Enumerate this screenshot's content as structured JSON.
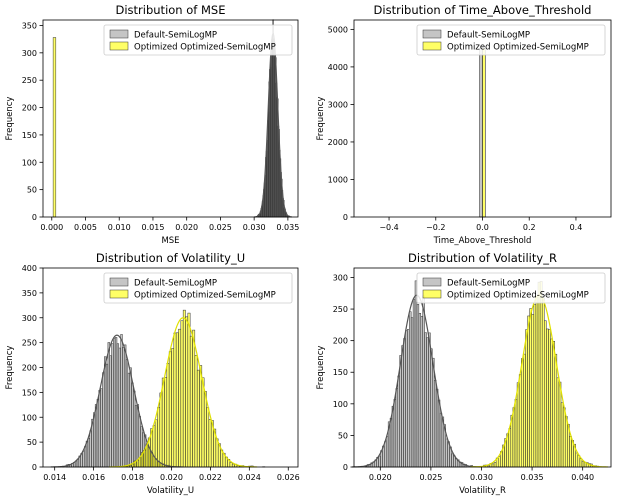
{
  "chart_data": [
    {
      "type": "bar",
      "title": "Distribution of MSE",
      "xlabel": "MSE",
      "ylabel": "Frequency",
      "xlim": [
        -0.0013,
        0.0365
      ],
      "ylim": [
        0,
        360
      ],
      "xticks": [
        0.0,
        0.005,
        0.01,
        0.015,
        0.02,
        0.025,
        0.03,
        0.035
      ],
      "xtick_labels": [
        "0.000",
        "0.005",
        "0.010",
        "0.015",
        "0.020",
        "0.025",
        "0.030",
        "0.035"
      ],
      "yticks": [
        0,
        50,
        100,
        150,
        200,
        250,
        300,
        350
      ],
      "ytick_labels": [
        "0",
        "50",
        "100",
        "150",
        "200",
        "250",
        "300",
        "350"
      ],
      "legend_position": "top-right",
      "series": [
        {
          "name": "Default-SemiLogMP",
          "color": "#9e9e9e",
          "kde": true,
          "hist": {
            "mean": 0.0328,
            "sd": 0.0007,
            "peak": 335,
            "range": [
              0.0305,
              0.0352
            ],
            "bins": 48
          }
        },
        {
          "name": "Optimized Optimized-SemiLogMP",
          "color": "#ffff00",
          "kde": false,
          "hist": {
            "mean": 0.0004,
            "sd": 5e-05,
            "peak": 328,
            "range": [
              0.0002,
              0.0006
            ],
            "bins": 1
          }
        }
      ]
    },
    {
      "type": "bar",
      "title": "Distribution of Time_Above_Threshold",
      "xlabel": "Time_Above_Threshold",
      "ylabel": "Frequency",
      "xlim": [
        -0.55,
        0.55
      ],
      "ylim": [
        0,
        5250
      ],
      "xticks": [
        -0.4,
        -0.2,
        0.0,
        0.2,
        0.4
      ],
      "xtick_labels": [
        "−0.4",
        "−0.2",
        "0.0",
        "0.2",
        "0.4"
      ],
      "yticks": [
        0,
        1000,
        2000,
        3000,
        4000,
        5000
      ],
      "ytick_labels": [
        "0",
        "1000",
        "2000",
        "3000",
        "4000",
        "5000"
      ],
      "legend_position": "top-right",
      "series": [
        {
          "name": "Default-SemiLogMP",
          "color": "#9e9e9e",
          "kde": false,
          "bars": [
            {
              "x0": -0.012,
              "x1": 0.0,
              "value": 4500
            }
          ]
        },
        {
          "name": "Optimized Optimized-SemiLogMP",
          "color": "#ffff00",
          "kde": false,
          "bars": [
            {
              "x0": 0.0,
              "x1": 0.012,
              "value": 4500
            }
          ]
        }
      ]
    },
    {
      "type": "bar",
      "title": "Distribution of Volatility_U",
      "xlabel": "Volatility_U",
      "ylabel": "Frequency",
      "xlim": [
        0.0134,
        0.0265
      ],
      "ylim": [
        0,
        400
      ],
      "xticks": [
        0.014,
        0.016,
        0.018,
        0.02,
        0.022,
        0.024,
        0.026
      ],
      "xtick_labels": [
        "0.014",
        "0.016",
        "0.018",
        "0.020",
        "0.022",
        "0.024",
        "0.026"
      ],
      "yticks": [
        0,
        50,
        100,
        150,
        200,
        250,
        300,
        350,
        400
      ],
      "ytick_labels": [
        "0",
        "50",
        "100",
        "150",
        "200",
        "250",
        "300",
        "350",
        "400"
      ],
      "legend_position": "top-right",
      "series": [
        {
          "name": "Default-SemiLogMP",
          "color": "#9e9e9e",
          "kde": true,
          "hist": {
            "mean": 0.0172,
            "sd": 0.00085,
            "peak": 265,
            "range": [
              0.0144,
              0.02
            ],
            "bins": 60
          }
        },
        {
          "name": "Optimized Optimized-SemiLogMP",
          "color": "#ffff00",
          "kde": true,
          "hist": {
            "mean": 0.0206,
            "sd": 0.00095,
            "peak": 300,
            "range": [
              0.0176,
              0.0248
            ],
            "bins": 60
          }
        }
      ]
    },
    {
      "type": "bar",
      "title": "Distribution of Volatility_R",
      "xlabel": "Volatility_R",
      "ylabel": "Frequency",
      "xlim": [
        0.0174,
        0.0428
      ],
      "ylim": [
        0,
        315
      ],
      "xticks": [
        0.02,
        0.025,
        0.03,
        0.035,
        0.04
      ],
      "xtick_labels": [
        "0.020",
        "0.025",
        "0.030",
        "0.035",
        "0.040"
      ],
      "yticks": [
        0,
        50,
        100,
        150,
        200,
        250,
        300
      ],
      "ytick_labels": [
        "0",
        "50",
        "100",
        "150",
        "200",
        "250",
        "300"
      ],
      "legend_position": "top-right",
      "series": [
        {
          "name": "Default-SemiLogMP",
          "color": "#9e9e9e",
          "kde": true,
          "hist": {
            "mean": 0.0236,
            "sd": 0.0016,
            "peak": 272,
            "range": [
              0.0185,
              0.0295
            ],
            "bins": 58
          }
        },
        {
          "name": "Optimized Optimized-SemiLogMP",
          "color": "#ffff00",
          "kde": true,
          "hist": {
            "mean": 0.0357,
            "sd": 0.0017,
            "peak": 272,
            "range": [
              0.03,
              0.042
            ],
            "bins": 58
          }
        }
      ]
    }
  ]
}
